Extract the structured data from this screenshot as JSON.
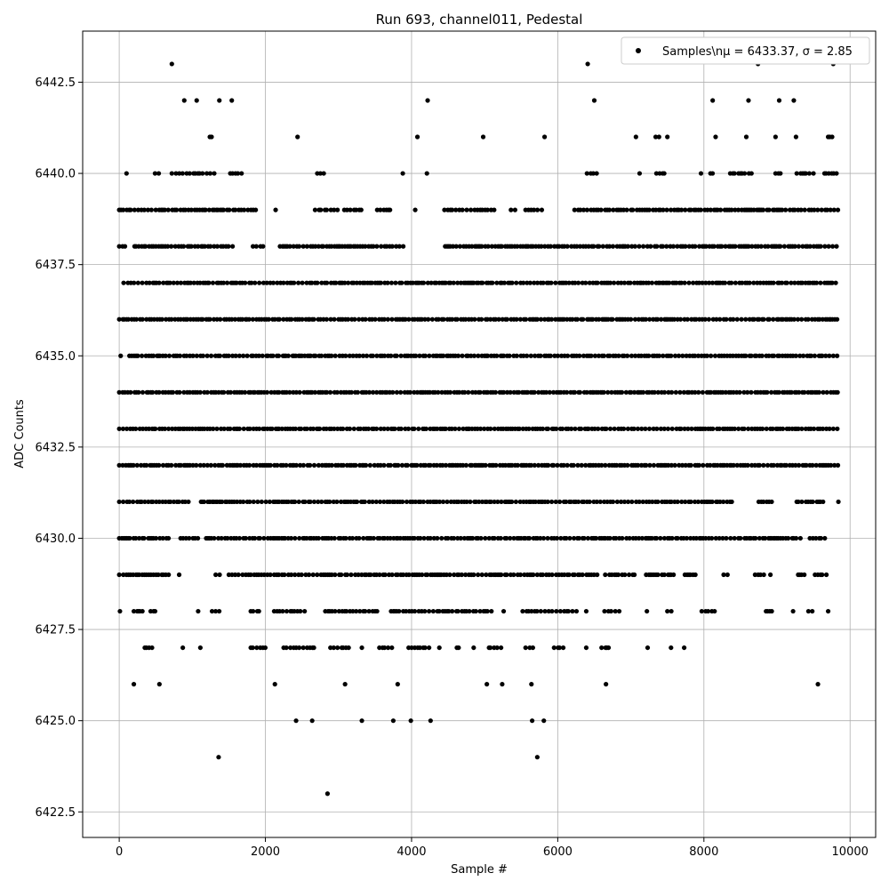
{
  "chart_data": {
    "type": "scatter",
    "title": "Run 693, channel011, Pedestal",
    "xlabel": "Sample #",
    "ylabel": "ADC Counts",
    "xlim": [
      -500,
      10350
    ],
    "ylim": [
      6421.8,
      6443.9
    ],
    "xticks": [
      0,
      2000,
      4000,
      6000,
      8000,
      10000
    ],
    "yticks": [
      6422.5,
      6425.0,
      6427.5,
      6430.0,
      6432.5,
      6435.0,
      6437.5,
      6440.0,
      6442.5
    ],
    "grid": true,
    "legend": {
      "position": "top-right",
      "label": "Samples\\nμ = 6433.37, σ = 2.85"
    },
    "series": [
      {
        "name": "Samples\\nμ = 6433.37, σ = 2.85",
        "color": "#000000",
        "level_coverage": [
          {
            "y": 6423,
            "ranges": [
              [
                2850,
                2850
              ]
            ]
          },
          {
            "y": 6424,
            "ranges": [
              [
                1360,
                1360
              ],
              [
                5720,
                5720
              ]
            ]
          },
          {
            "y": 6425,
            "ranges": [
              [
                2420,
                2420
              ],
              [
                2640,
                2640
              ],
              [
                3320,
                3320
              ],
              [
                3750,
                3750
              ],
              [
                3990,
                3990
              ],
              [
                4260,
                4260
              ],
              [
                5650,
                5650
              ],
              [
                5810,
                5810
              ]
            ]
          },
          {
            "y": 6426,
            "ranges": [
              [
                200,
                200
              ],
              [
                550,
                550
              ],
              [
                2130,
                2130
              ],
              [
                3090,
                3090
              ],
              [
                3810,
                3810
              ],
              [
                5030,
                5030
              ],
              [
                5240,
                5240
              ],
              [
                5640,
                5640
              ],
              [
                6660,
                6660
              ],
              [
                9560,
                9560
              ]
            ]
          },
          {
            "y": 6427,
            "ranges": [
              [
                350,
                480
              ],
              [
                870,
                870
              ],
              [
                1110,
                1110
              ],
              [
                1800,
                2000
              ],
              [
                2250,
                2700
              ],
              [
                2890,
                3150
              ],
              [
                3320,
                3320
              ],
              [
                3560,
                3750
              ],
              [
                3960,
                4250
              ],
              [
                4380,
                4420
              ],
              [
                4620,
                4700
              ],
              [
                4850,
                4850
              ],
              [
                5060,
                5280
              ],
              [
                5560,
                5660
              ],
              [
                5950,
                6120
              ],
              [
                6390,
                6390
              ],
              [
                6600,
                6700
              ],
              [
                7230,
                7230
              ],
              [
                7550,
                7550
              ],
              [
                7730,
                7730
              ]
            ]
          },
          {
            "y": 6428,
            "ranges": [
              [
                10,
                10
              ],
              [
                200,
                320
              ],
              [
                430,
                520
              ],
              [
                1080,
                1080
              ],
              [
                1270,
                1380
              ],
              [
                1800,
                1960
              ],
              [
                2120,
                2550
              ],
              [
                2820,
                3550
              ],
              [
                3720,
                5100
              ],
              [
                5260,
                5300
              ],
              [
                5520,
                6300
              ],
              [
                6390,
                6390
              ],
              [
                6640,
                6850
              ],
              [
                7220,
                7220
              ],
              [
                7500,
                7560
              ],
              [
                7970,
                8150
              ],
              [
                8850,
                8950
              ],
              [
                9220,
                9220
              ],
              [
                9430,
                9530
              ],
              [
                9700,
                9700
              ]
            ]
          },
          {
            "y": 6429,
            "ranges": [
              [
                0,
                700
              ],
              [
                820,
                870
              ],
              [
                1320,
                1380
              ],
              [
                1500,
                2800
              ],
              [
                2820,
                4990
              ],
              [
                5020,
                6560
              ],
              [
                6650,
                7050
              ],
              [
                7210,
                7600
              ],
              [
                7740,
                7900
              ],
              [
                8270,
                8340
              ],
              [
                8700,
                8830
              ],
              [
                8910,
                8910
              ],
              [
                9290,
                9380
              ],
              [
                9520,
                9690
              ]
            ]
          },
          {
            "y": 6430,
            "ranges": [
              [
                0,
                100
              ],
              [
                100,
                700
              ],
              [
                840,
                1120
              ],
              [
                1190,
                9370
              ],
              [
                9450,
                9680
              ]
            ]
          },
          {
            "y": 6431,
            "ranges": [
              [
                0,
                700
              ],
              [
                700,
                950
              ],
              [
                1120,
                1380
              ],
              [
                1240,
                8400
              ],
              [
                8750,
                8930
              ],
              [
                9270,
                9670
              ],
              [
                9840,
                9840
              ]
            ]
          },
          {
            "y": 6432,
            "ranges": [
              [
                0,
                9840
              ]
            ]
          },
          {
            "y": 6433,
            "ranges": [
              [
                0,
                9840
              ]
            ]
          },
          {
            "y": 6434,
            "ranges": [
              [
                0,
                9840
              ]
            ]
          },
          {
            "y": 6435,
            "ranges": [
              [
                20,
                20
              ],
              [
                140,
                9840
              ]
            ]
          },
          {
            "y": 6436,
            "ranges": [
              [
                0,
                9840
              ]
            ]
          },
          {
            "y": 6437,
            "ranges": [
              [
                60,
                9840
              ]
            ]
          },
          {
            "y": 6438,
            "ranges": [
              [
                0,
                90
              ],
              [
                210,
                1600
              ],
              [
                1830,
                2000
              ],
              [
                2200,
                3900
              ],
              [
                4460,
                9840
              ]
            ]
          },
          {
            "y": 6439,
            "ranges": [
              [
                0,
                450
              ],
              [
                500,
                1900
              ],
              [
                2140,
                2140
              ],
              [
                2680,
                3000
              ],
              [
                3080,
                3350
              ],
              [
                3530,
                3740
              ],
              [
                4050,
                4050
              ],
              [
                4450,
                5150
              ],
              [
                5360,
                5430
              ],
              [
                5560,
                5800
              ],
              [
                6230,
                9840
              ]
            ]
          },
          {
            "y": 6440,
            "ranges": [
              [
                100,
                100
              ],
              [
                490,
                560
              ],
              [
                720,
                1320
              ],
              [
                1520,
                1680
              ],
              [
                2710,
                2800
              ],
              [
                3880,
                3880
              ],
              [
                4210,
                4210
              ],
              [
                6400,
                6560
              ],
              [
                7120,
                7120
              ],
              [
                7350,
                7490
              ],
              [
                7960,
                7960
              ],
              [
                8090,
                8150
              ],
              [
                8360,
                8660
              ],
              [
                8980,
                9070
              ],
              [
                9270,
                9510
              ],
              [
                9650,
                9840
              ]
            ]
          },
          {
            "y": 6441,
            "ranges": [
              [
                1240,
                1280
              ],
              [
                2440,
                2440
              ],
              [
                4080,
                4080
              ],
              [
                4980,
                4980
              ],
              [
                5820,
                5820
              ],
              [
                7070,
                7070
              ],
              [
                7340,
                7410
              ],
              [
                7500,
                7500
              ],
              [
                8160,
                8210
              ],
              [
                8580,
                8580
              ],
              [
                8980,
                8980
              ],
              [
                9260,
                9260
              ],
              [
                9700,
                9760
              ]
            ]
          },
          {
            "y": 6442,
            "ranges": [
              [
                890,
                890
              ],
              [
                1060,
                1060
              ],
              [
                1370,
                1370
              ],
              [
                1540,
                1540
              ],
              [
                4220,
                4220
              ],
              [
                6500,
                6500
              ],
              [
                8120,
                8120
              ],
              [
                8610,
                8610
              ],
              [
                9030,
                9030
              ],
              [
                9230,
                9230
              ]
            ]
          },
          {
            "y": 6443,
            "ranges": [
              [
                720,
                720
              ],
              [
                6410,
                6430
              ],
              [
                8740,
                8740
              ],
              [
                9770,
                9770
              ]
            ]
          }
        ]
      }
    ]
  }
}
